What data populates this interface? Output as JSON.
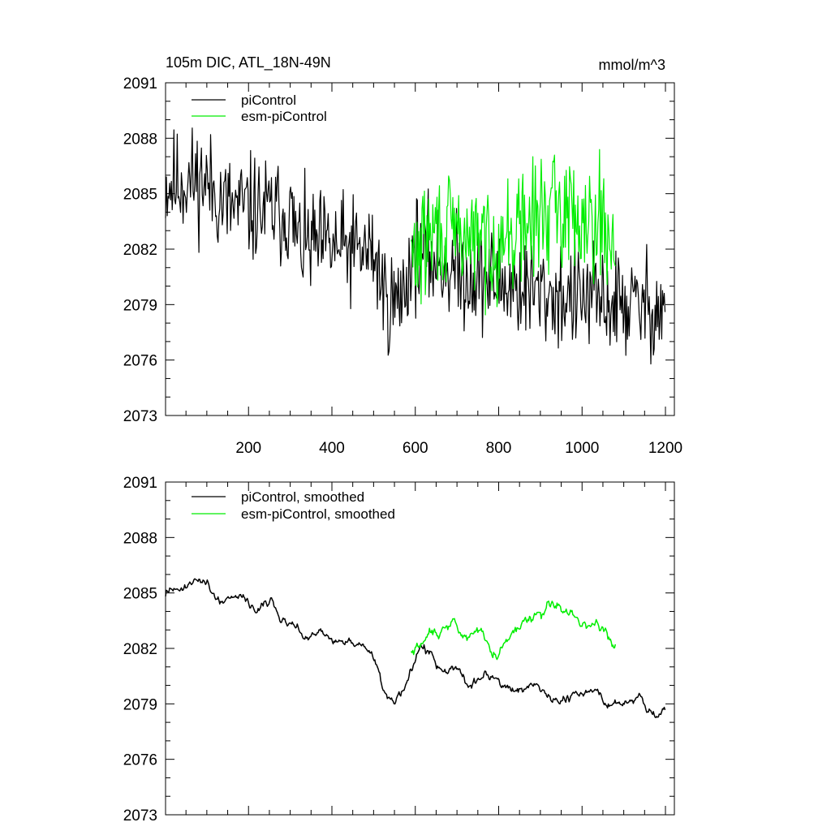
{
  "chart_data": [
    {
      "type": "line",
      "title": "105m DIC, ATL_18N-49N",
      "units": "mmol/m^3",
      "xlim": [
        1,
        1200
      ],
      "ylim": [
        2073,
        2091
      ],
      "yticks": [
        2073,
        2076,
        2079,
        2082,
        2085,
        2088,
        2091
      ],
      "xticks": [
        200,
        400,
        600,
        800,
        1000,
        1200
      ],
      "show_x_tick_labels": true,
      "legend": "top-left",
      "series": [
        {
          "name": "piControl",
          "color": "#000000",
          "x_range": [
            1,
            1200
          ],
          "seed": 11,
          "noise": 1.8,
          "trend": [
            [
              1,
              2085.5
            ],
            [
              90,
              2085.8
            ],
            [
              150,
              2084.3
            ],
            [
              300,
              2083.9
            ],
            [
              320,
              2082.3
            ],
            [
              500,
              2081.8
            ],
            [
              530,
              2079.3
            ],
            [
              560,
              2079.0
            ],
            [
              600,
              2082.0
            ],
            [
              700,
              2080.8
            ],
            [
              900,
              2079.6
            ],
            [
              1100,
              2079.0
            ],
            [
              1200,
              2078.8
            ]
          ]
        },
        {
          "name": "esm-piControl",
          "color": "#00ee00",
          "x_range": [
            590,
            1080
          ],
          "seed": 29,
          "noise": 1.9,
          "trend": [
            [
              590,
              2081.5
            ],
            [
              650,
              2083.0
            ],
            [
              800,
              2082.3
            ],
            [
              920,
              2084.2
            ],
            [
              1040,
              2083.8
            ],
            [
              1080,
              2081.8
            ]
          ]
        }
      ]
    },
    {
      "type": "line",
      "title": "",
      "xlim": [
        1,
        1200
      ],
      "ylim": [
        2073,
        2091
      ],
      "yticks": [
        2073,
        2076,
        2079,
        2082,
        2085,
        2088,
        2091
      ],
      "xticks": [
        200,
        400,
        600,
        800,
        1000,
        1200
      ],
      "show_x_tick_labels": false,
      "legend": "top-left",
      "series": [
        {
          "name": "piControl, smoothed",
          "color": "#000000",
          "x_range": [
            1,
            1200
          ],
          "seed": 11,
          "noise": 1.8,
          "smooth": 9,
          "trend": [
            [
              1,
              2085.5
            ],
            [
              90,
              2085.8
            ],
            [
              150,
              2084.3
            ],
            [
              300,
              2083.9
            ],
            [
              320,
              2082.3
            ],
            [
              500,
              2081.8
            ],
            [
              530,
              2079.3
            ],
            [
              560,
              2079.0
            ],
            [
              600,
              2082.0
            ],
            [
              700,
              2080.8
            ],
            [
              900,
              2079.6
            ],
            [
              1100,
              2079.0
            ],
            [
              1200,
              2078.8
            ]
          ]
        },
        {
          "name": "esm-piControl, smoothed",
          "color": "#00ee00",
          "x_range": [
            590,
            1080
          ],
          "seed": 29,
          "noise": 1.9,
          "smooth": 9,
          "trend": [
            [
              590,
              2081.5
            ],
            [
              650,
              2083.0
            ],
            [
              800,
              2082.3
            ],
            [
              920,
              2084.2
            ],
            [
              1040,
              2083.8
            ],
            [
              1080,
              2081.8
            ]
          ]
        }
      ]
    }
  ]
}
